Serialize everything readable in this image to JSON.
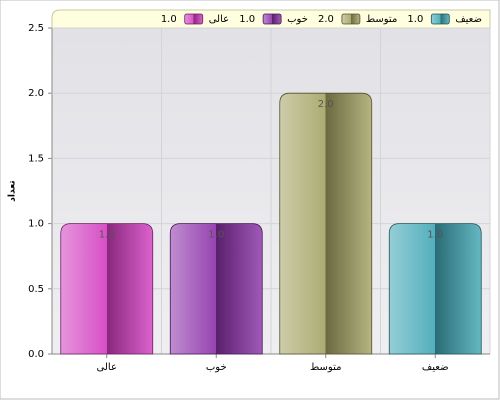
{
  "chart_data": {
    "type": "bar",
    "y_label": "تعداد",
    "categories": [
      "عالی",
      "خوب",
      "متوسط",
      "ضعیف"
    ],
    "values": [
      1,
      1,
      2,
      1
    ],
    "value_labels": [
      "1.0",
      "1.0",
      "2.0",
      "1.0"
    ],
    "colors": [
      "#d23cc0",
      "#8a2fa8",
      "#a4a262",
      "#3fa6b4"
    ],
    "ylim": [
      0,
      2.5
    ],
    "yticks": [
      {
        "value": 0,
        "label": "0.0"
      },
      {
        "value": 0.5,
        "label": "0.5"
      },
      {
        "value": 1,
        "label": "1.0"
      },
      {
        "value": 1.5,
        "label": "1.5"
      },
      {
        "value": 2,
        "label": "2.0"
      },
      {
        "value": 2.5,
        "label": "2.5"
      }
    ],
    "grid": true
  }
}
